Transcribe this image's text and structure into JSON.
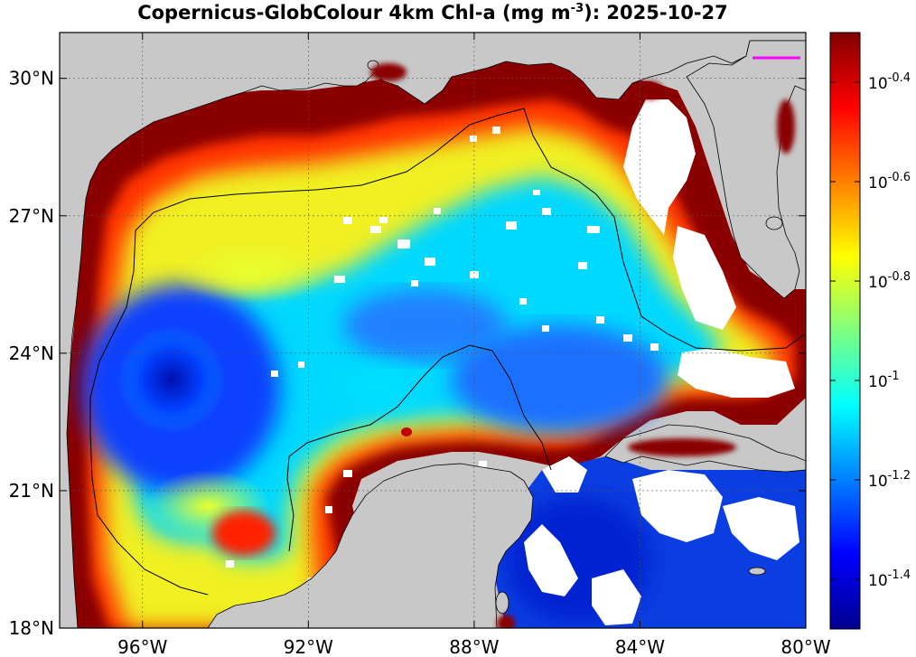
{
  "title": {
    "prefix": "Copernicus-GlobColour 4km Chl-a (mg m",
    "exponent": "-3",
    "suffix": "): 2025-10-27"
  },
  "map": {
    "lon_range": [
      -98,
      -80
    ],
    "lat_range": [
      18,
      31
    ],
    "lon_ticks": [
      {
        "value": -96,
        "label": "96°W"
      },
      {
        "value": -92,
        "label": "92°W"
      },
      {
        "value": -88,
        "label": "88°W"
      },
      {
        "value": -84,
        "label": "84°W"
      },
      {
        "value": -80,
        "label": "80°W"
      }
    ],
    "lat_ticks": [
      {
        "value": 30,
        "label": "30°N"
      },
      {
        "value": 27,
        "label": "27°N"
      },
      {
        "value": 24,
        "label": "24°N"
      },
      {
        "value": 21,
        "label": "21°N"
      },
      {
        "value": 18,
        "label": "18°N"
      }
    ],
    "grid": "dotted",
    "land_color": "#c8c8c8",
    "missing_color": "#ffffff"
  },
  "colorbar": {
    "scale": "log10",
    "range_log": [
      -1.5,
      -0.3
    ],
    "ticks": [
      {
        "base": "10",
        "exp": "-0.4",
        "value": -0.4
      },
      {
        "base": "10",
        "exp": "-0.6",
        "value": -0.6
      },
      {
        "base": "10",
        "exp": "-0.8",
        "value": -0.8
      },
      {
        "base": "10",
        "exp": "-1",
        "value": -1.0
      },
      {
        "base": "10",
        "exp": "-1.2",
        "value": -1.2
      },
      {
        "base": "10",
        "exp": "-1.4",
        "value": -1.4
      }
    ],
    "colormap": "jet"
  }
}
